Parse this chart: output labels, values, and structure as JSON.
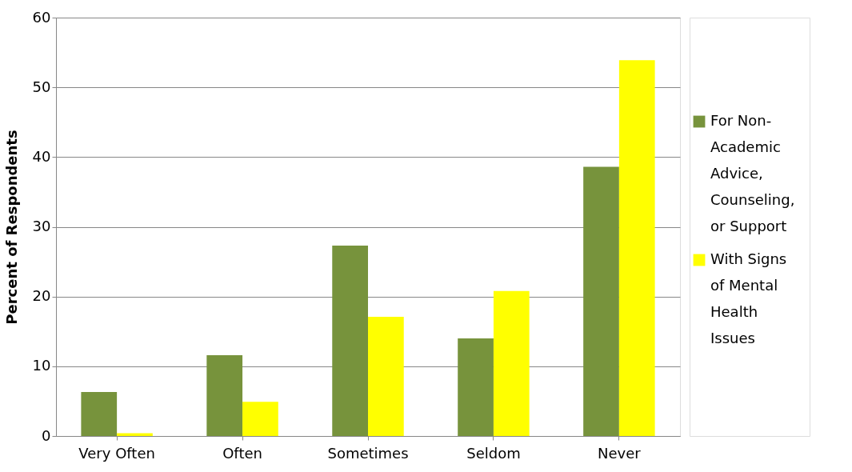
{
  "chart_data": {
    "type": "bar",
    "ylabel": "Percent of Respondents",
    "categories": [
      "Very Often",
      "Often",
      "Sometimes",
      "Seldom",
      "Never"
    ],
    "series": [
      {
        "name": "For Non-Academic Advice, Counseling, or Support",
        "color": "#77933c",
        "values": [
          6.3,
          11.6,
          27.3,
          14.0,
          38.6
        ]
      },
      {
        "name": "With Signs of Mental Health Issues",
        "color": "#ffff00",
        "values": [
          0.4,
          4.9,
          17.1,
          20.8,
          53.9
        ]
      }
    ],
    "ylim": [
      0,
      60
    ],
    "yticks": [
      0,
      10,
      20,
      30,
      40,
      50,
      60
    ],
    "grid": "y",
    "legend": "right"
  }
}
